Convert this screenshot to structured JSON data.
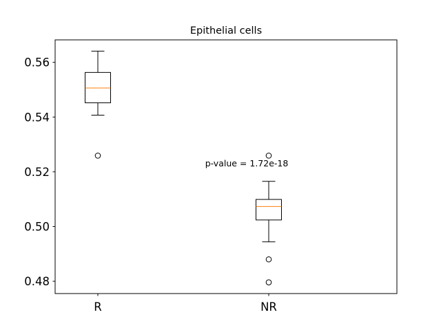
{
  "chart_data": {
    "type": "box",
    "title": "Epithelial cells",
    "xlabel": "",
    "ylabel": "",
    "categories": [
      "R",
      "NR"
    ],
    "ylim": [
      0.4755,
      0.5682
    ],
    "yticks": [
      0.48,
      0.5,
      0.52,
      0.54,
      0.56
    ],
    "ytick_labels": [
      "0.48",
      "0.50",
      "0.52",
      "0.54",
      "0.56"
    ],
    "grid": false,
    "boxes": [
      {
        "name": "R",
        "whisker_low": 0.5407,
        "q1": 0.5452,
        "median": 0.5506,
        "q3": 0.5563,
        "whisker_high": 0.5641,
        "outliers": [
          0.5259
        ]
      },
      {
        "name": "NR",
        "whisker_low": 0.4944,
        "q1": 0.5024,
        "median": 0.5073,
        "q3": 0.5099,
        "whisker_high": 0.5165,
        "outliers": [
          0.5259,
          0.488,
          0.4796
        ]
      }
    ],
    "annotation": "p-value = 1.72e-18",
    "colors": {
      "box": "#000000",
      "median": "#ff7f0e",
      "axes": "#000000",
      "background": "#ffffff"
    }
  }
}
